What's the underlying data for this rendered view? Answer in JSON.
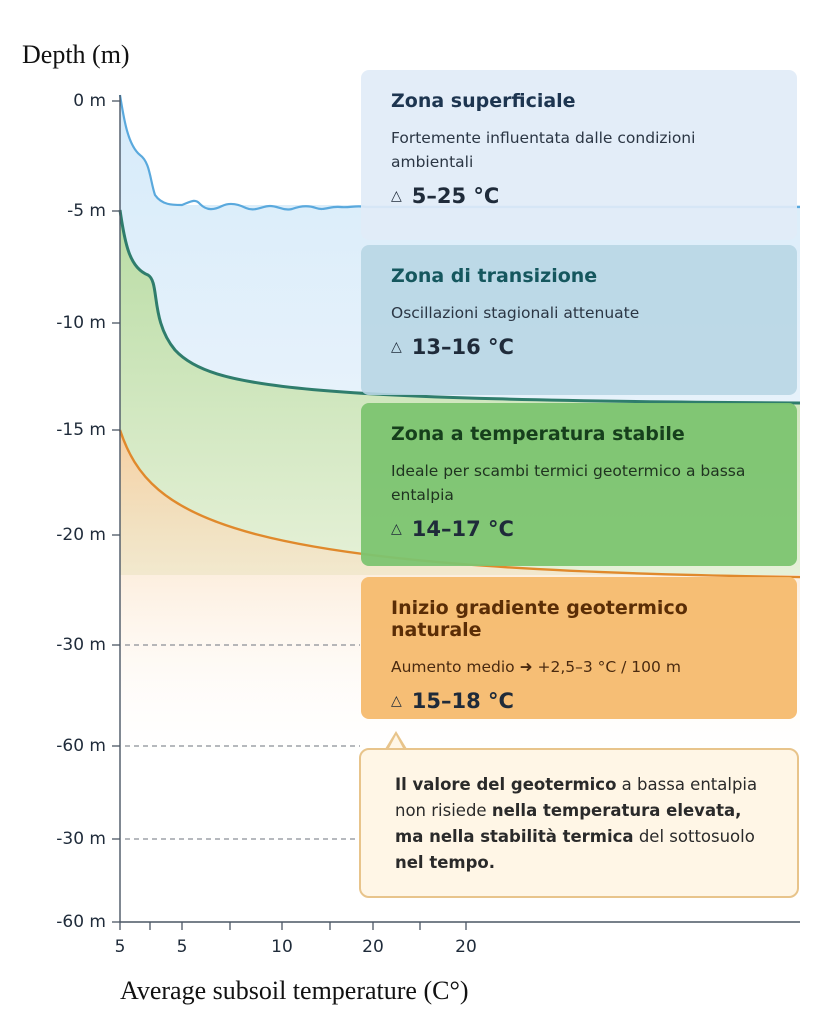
{
  "axes": {
    "ylabel": "Depth (m)",
    "xlabel": "Average subsoil temperature (C°)",
    "yticks": [
      "0 m",
      "-5 m",
      "-10 m",
      "-15 m",
      "-20 m",
      "-30 m",
      "-60 m",
      "-30 m",
      "-60 m"
    ],
    "xticks": [
      "5",
      "5",
      "10",
      "20",
      "20"
    ]
  },
  "zones": [
    {
      "title": "Zona superficiale",
      "desc": "Fortemente influentata dalle condizioni ambientali",
      "range": "5–25 °C",
      "range_icon": "warming-triangle-icon"
    },
    {
      "title": "Zona di transizione",
      "desc": "Oscillazioni stagionali attenuate",
      "range": "13–16 °C",
      "range_icon": "warming-triangle-icon"
    },
    {
      "title": "Zona a temperatura stabile",
      "desc": "Ideale per scambi termici geotermico a bassa entalpia",
      "range": "14–17 °C",
      "range_icon": "warming-triangle-icon"
    },
    {
      "title": "Inizio gradiente geotermico naturale",
      "desc": "Aumento medio ➜ +2,5–3 °C / 100 m",
      "range": "15–18 °C",
      "range_icon": "warming-triangle-icon"
    }
  ],
  "note": {
    "p1": "Il valore del ",
    "p2": "geotermico",
    "p3": " a bassa entalpia non risiede ",
    "p4": "nella temperatura elevata,",
    "p5": " ",
    "p6": "ma nella stabilità termica",
    "p7": " del sottosuolo ",
    "p8": "nel tempo."
  },
  "colors": {
    "surface": "#5aa9dd",
    "transition": "#2f7d6c",
    "stable": "#8fcb7e",
    "gradient": "#e0892c",
    "axis": "#4a5664"
  }
}
